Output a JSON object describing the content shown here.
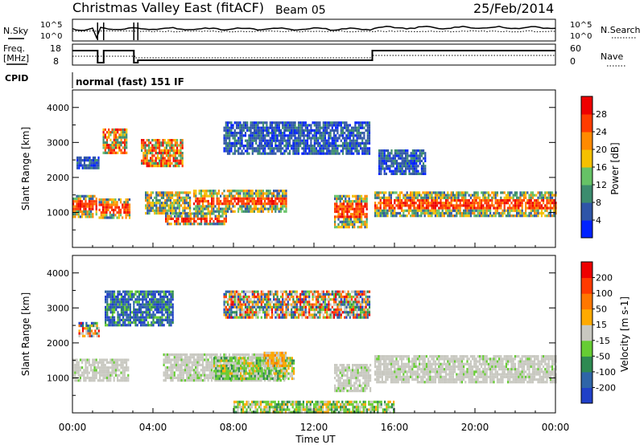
{
  "header": {
    "title": "Christmas Valley East (fitACF)",
    "beam": "Beam 05",
    "date": "25/Feb/2014"
  },
  "noise_panel": {
    "left_label": "N.Sky",
    "right_label": "N.Search",
    "ticks": [
      "10^5",
      "10^0"
    ]
  },
  "freq_panel": {
    "left_label_1": "Freq.",
    "left_label_2": "[MHz]",
    "left_ticks": [
      "18",
      "8"
    ],
    "right_label": "Nave",
    "right_ticks": [
      "60",
      "0"
    ]
  },
  "cpid": {
    "label": "CPID",
    "value": "normal (fast) 151 IF"
  },
  "colors": {
    "background": "#ffffff",
    "power_scale": [
      "#0022ff",
      "#2f55a8",
      "#3c8c6e",
      "#66c266",
      "#f5c000",
      "#ff8a00",
      "#ff3c00",
      "#ee0000"
    ],
    "velocity_scale": [
      "#2040c8",
      "#2f65a8",
      "#2e8a52",
      "#66cc33",
      "#c8c8c0",
      "#ffaa00",
      "#ff7700",
      "#ff3a00",
      "#ee0000"
    ]
  },
  "chart_data": [
    {
      "type": "heatmap",
      "panel": "power",
      "ylabel": "Slant Range [km]",
      "ylim": [
        0,
        4500
      ],
      "y_ticks": [
        "4000",
        "3000",
        "2000",
        "1000"
      ],
      "xlim": [
        "00:00",
        "24:00"
      ],
      "colorbar": {
        "label": "Power [dB]",
        "ticks": [
          "28",
          "24",
          "20",
          "16",
          "12",
          "8",
          "4"
        ]
      },
      "regions": [
        {
          "t0": 0.0,
          "t1": 1.2,
          "r0": 900,
          "r1": 1500,
          "level": "high"
        },
        {
          "t0": 1.3,
          "t1": 2.8,
          "r0": 850,
          "r1": 1400,
          "level": "high"
        },
        {
          "t0": 0.2,
          "t1": 1.3,
          "r0": 2250,
          "r1": 2600,
          "level": "low"
        },
        {
          "t0": 1.5,
          "t1": 2.7,
          "r0": 2700,
          "r1": 3400,
          "level": "mid-high"
        },
        {
          "t0": 3.4,
          "t1": 5.5,
          "r0": 2300,
          "r1": 3100,
          "level": "mid-high"
        },
        {
          "t0": 3.6,
          "t1": 5.8,
          "r0": 1000,
          "r1": 1600,
          "level": "mid"
        },
        {
          "t0": 6.0,
          "t1": 10.6,
          "r0": 1000,
          "r1": 1650,
          "level": "high"
        },
        {
          "t0": 4.6,
          "t1": 7.6,
          "r0": 650,
          "r1": 1000,
          "level": "high"
        },
        {
          "t0": 7.5,
          "t1": 14.8,
          "r0": 2700,
          "r1": 3600,
          "level": "low"
        },
        {
          "t0": 13.0,
          "t1": 14.6,
          "r0": 600,
          "r1": 1500,
          "level": "high"
        },
        {
          "t0": 15.0,
          "t1": 24.0,
          "r0": 900,
          "r1": 1600,
          "level": "high"
        },
        {
          "t0": 15.2,
          "t1": 17.5,
          "r0": 2100,
          "r1": 2800,
          "level": "low"
        }
      ]
    },
    {
      "type": "heatmap",
      "panel": "velocity",
      "ylabel": "Slant Range [km]",
      "xlabel": "Time UT",
      "ylim": [
        0,
        4500
      ],
      "y_ticks": [
        "4000",
        "3000",
        "2000",
        "1000"
      ],
      "xlim": [
        "00:00",
        "24:00"
      ],
      "x_ticks": [
        "00:00",
        "04:00",
        "08:00",
        "12:00",
        "16:00",
        "20:00",
        "00:00"
      ],
      "colorbar": {
        "label": "Velocity [m s-1]",
        "ticks": [
          "200",
          "100",
          "50",
          "15",
          "-15",
          "-50",
          "-100",
          "-200"
        ]
      },
      "regions": [
        {
          "t0": 0.0,
          "t1": 2.8,
          "r0": 900,
          "r1": 1550,
          "level": "near-zero"
        },
        {
          "t0": 0.3,
          "t1": 1.3,
          "r0": 2200,
          "r1": 2600,
          "level": "mixed"
        },
        {
          "t0": 1.6,
          "t1": 5.0,
          "r0": 2500,
          "r1": 3500,
          "level": "toward"
        },
        {
          "t0": 4.5,
          "t1": 10.6,
          "r0": 900,
          "r1": 1700,
          "level": "near-zero"
        },
        {
          "t0": 7.0,
          "t1": 11.0,
          "r0": 1000,
          "r1": 1600,
          "level": "slight-toward"
        },
        {
          "t0": 9.5,
          "t1": 10.6,
          "r0": 1350,
          "r1": 1750,
          "level": "away"
        },
        {
          "t0": 7.5,
          "t1": 14.8,
          "r0": 2700,
          "r1": 3500,
          "level": "mixed"
        },
        {
          "t0": 13.0,
          "t1": 14.8,
          "r0": 600,
          "r1": 1400,
          "level": "near-zero"
        },
        {
          "t0": 15.0,
          "t1": 24.0,
          "r0": 900,
          "r1": 1650,
          "level": "near-zero"
        },
        {
          "t0": 8.0,
          "t1": 16.0,
          "r0": 0,
          "r1": 350,
          "level": "slight-toward"
        }
      ]
    }
  ]
}
